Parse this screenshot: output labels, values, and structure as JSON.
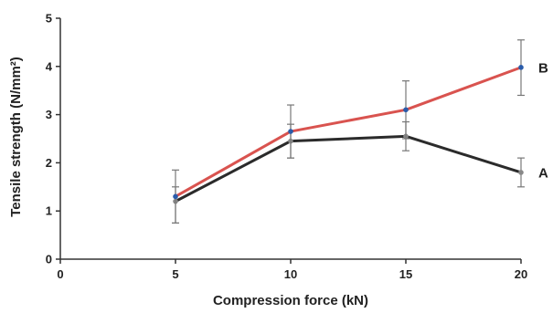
{
  "chart_data": {
    "type": "line",
    "title": "",
    "xlabel": "Compression force (kN)",
    "ylabel": "Tensile strength (N/mm²)",
    "xlim": [
      0,
      20
    ],
    "ylim": [
      0,
      5
    ],
    "x_ticks": [
      "0",
      "5",
      "10",
      "15",
      "20"
    ],
    "y_ticks": [
      "0",
      "1",
      "2",
      "3",
      "4",
      "5"
    ],
    "grid": false,
    "legend": "none",
    "x": [
      5,
      10,
      15,
      20
    ],
    "series": [
      {
        "name": "A",
        "color": "#2b2b2b",
        "marker_color": "#888888",
        "values": [
          1.2,
          2.45,
          2.55,
          1.8
        ],
        "error_low": [
          0.75,
          2.1,
          2.25,
          1.5
        ],
        "error_high": [
          1.5,
          2.8,
          2.85,
          2.1
        ]
      },
      {
        "name": "B",
        "color": "#d9534f",
        "marker_color": "#2a5caa",
        "values": [
          1.3,
          2.65,
          3.1,
          3.98
        ],
        "error_low": [
          0.75,
          2.1,
          2.5,
          3.4
        ],
        "error_high": [
          1.85,
          3.2,
          3.7,
          4.55
        ]
      }
    ]
  }
}
